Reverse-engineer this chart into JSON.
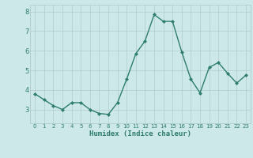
{
  "x": [
    0,
    1,
    2,
    3,
    4,
    5,
    6,
    7,
    8,
    9,
    10,
    11,
    12,
    13,
    14,
    15,
    16,
    17,
    18,
    19,
    20,
    21,
    22,
    23
  ],
  "y": [
    3.8,
    3.5,
    3.2,
    3.0,
    3.35,
    3.35,
    3.0,
    2.8,
    2.75,
    3.35,
    4.55,
    5.85,
    6.5,
    7.85,
    7.5,
    7.5,
    5.95,
    4.55,
    3.85,
    5.15,
    5.4,
    4.85,
    4.35,
    4.75
  ],
  "line_color": "#2e7d6e",
  "marker": "D",
  "marker_size": 2.0,
  "linewidth": 1.0,
  "xlabel": "Humidex (Indice chaleur)",
  "xlim": [
    -0.5,
    23.5
  ],
  "ylim": [
    2.3,
    8.35
  ],
  "yticks": [
    3,
    4,
    5,
    6,
    7,
    8
  ],
  "xtick_labels": [
    "0",
    "1",
    "2",
    "3",
    "4",
    "5",
    "6",
    "7",
    "8",
    "9",
    "10",
    "11",
    "12",
    "13",
    "14",
    "15",
    "16",
    "17",
    "18",
    "19",
    "20",
    "21",
    "22",
    "23"
  ],
  "bg_color": "#cce8e8",
  "grid_color": "#b0cccc"
}
